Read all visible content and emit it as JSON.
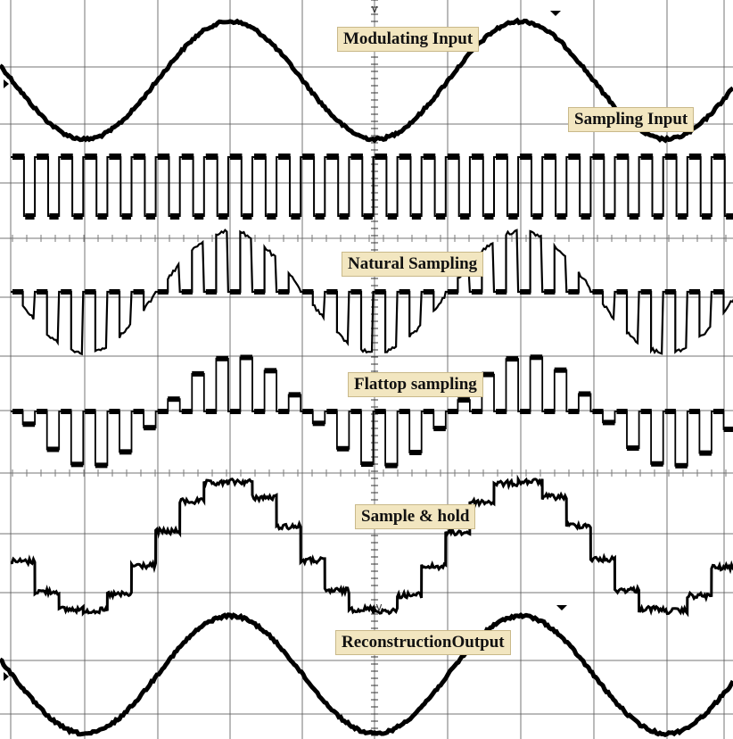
{
  "chart_data": [
    {
      "type": "line",
      "title": "Modulating Input",
      "waveform": "sine",
      "period_divisions": 4,
      "visible_divisions": 10,
      "noise": "low"
    },
    {
      "type": "line",
      "title": "Sampling Input",
      "waveform": "square",
      "cycles_per_screen": 30,
      "duty_cycle": 0.5,
      "noise": "low"
    },
    {
      "type": "line",
      "title": "Natural Sampling",
      "waveform": "natural-sampled sine",
      "samples_per_screen": 30,
      "noise": "medium"
    },
    {
      "type": "line",
      "title": "Flattop sampling",
      "waveform": "flat-top sampled sine",
      "samples_per_screen": 30,
      "noise": "medium"
    },
    {
      "type": "line",
      "title": "Sample & hold",
      "waveform": "staircase sine",
      "steps_per_screen": 30,
      "noise": "high"
    },
    {
      "type": "line",
      "title": "ReconstructionOutput",
      "waveform": "sine",
      "period_divisions": 4,
      "visible_divisions": 10,
      "noise": "low"
    }
  ],
  "grid": {
    "on": true,
    "divisions_x": 10,
    "background": "#ffffff",
    "line_color": "#555555",
    "trace_color": "#000000"
  },
  "labels": {
    "modulating_input": "Modulating Input",
    "sampling_input": "Sampling Input",
    "natural_sampling": "Natural Sampling",
    "flattop_sampling": "Flattop sampling",
    "sample_hold": "Sample & hold",
    "reconstruction_output": "ReconstructionOutput"
  },
  "label_box_color": "#f2e6c0"
}
